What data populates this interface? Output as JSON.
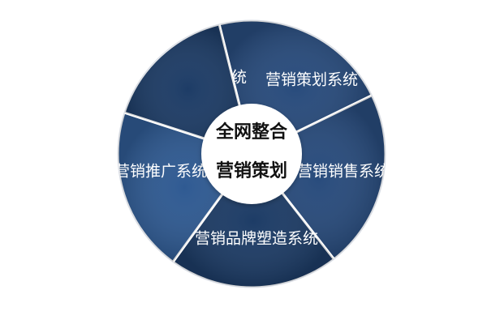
{
  "colors": {
    "segment_dark": "#1d3c66",
    "segment_mid": "#284b7c",
    "segment_light": "#2f5a92",
    "separator": "#ffffff",
    "center_fill": "#ffffff",
    "center_text": "#111111"
  },
  "center": {
    "line1": "全网整合",
    "line2": "营销策划"
  },
  "segments": [
    {
      "label": "电商运营系统"
    },
    {
      "label": "营销策划系统"
    },
    {
      "label": "营销销售系统"
    },
    {
      "label": "营销品牌塑造系统"
    },
    {
      "label": "营销推广系统"
    }
  ]
}
